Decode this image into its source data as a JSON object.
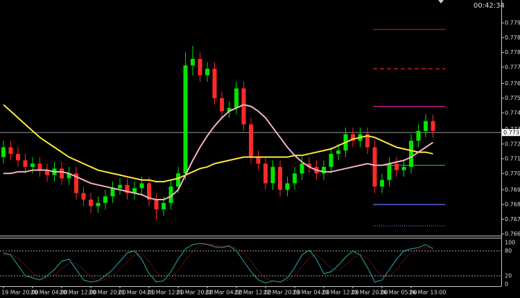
{
  "clock": "00:42:34",
  "chart_data": [
    {
      "type": "candlestick",
      "categories": [
        "19 Mar 20:00",
        null,
        null,
        null,
        "20 Mar 04:00",
        null,
        null,
        null,
        "20 Mar 12:00",
        null,
        null,
        null,
        "20 Mar 20:00",
        null,
        null,
        null,
        "21 Mar 04:00",
        null,
        null,
        null,
        "21 Mar 12:00",
        null,
        null,
        null,
        "21 Mar 20:00",
        null,
        null,
        null,
        "22 Mar 04:00",
        null,
        null,
        null,
        "22 Mar 12:00",
        null,
        null,
        null,
        "22 Mar 20:00",
        null,
        null,
        null,
        "23 Mar 04:00",
        null,
        null,
        null,
        "23 Mar 12:00",
        null,
        null,
        null,
        "23 Mar 20:00",
        null,
        null,
        null,
        "26 Mar 05:00",
        null,
        null,
        null,
        "26 Mar 13:00",
        null,
        null,
        null
      ],
      "open": [
        0.7716,
        0.7722,
        0.7718,
        0.7714,
        0.771,
        0.7712,
        0.7708,
        0.7705,
        0.7709,
        0.7703,
        0.7706,
        0.7694,
        0.769,
        0.7686,
        0.7688,
        0.7692,
        0.7697,
        0.7699,
        0.7694,
        0.7697,
        0.77,
        0.769,
        0.7684,
        0.7688,
        0.7698,
        0.7706,
        0.7772,
        0.7776,
        0.7766,
        0.777,
        0.7752,
        0.7744,
        0.7746,
        0.7758,
        0.7736,
        0.7716,
        0.7712,
        0.77,
        0.771,
        0.7696,
        0.77,
        0.7706,
        0.7712,
        0.771,
        0.7706,
        0.771,
        0.7718,
        0.772,
        0.773,
        0.7726,
        0.773,
        0.7722,
        0.7698,
        0.7702,
        0.7712,
        0.7708,
        0.771,
        0.7726,
        0.7732,
        0.7738
      ],
      "high": [
        0.7726,
        0.7726,
        0.7722,
        0.7718,
        0.7716,
        0.7716,
        0.7712,
        0.7713,
        0.7713,
        0.771,
        0.771,
        0.7698,
        0.7694,
        0.7692,
        0.7696,
        0.7701,
        0.7703,
        0.7703,
        0.7701,
        0.7704,
        0.7704,
        0.7694,
        0.7692,
        0.7702,
        0.771,
        0.778,
        0.7784,
        0.778,
        0.7774,
        0.7774,
        0.7756,
        0.775,
        0.7762,
        0.7762,
        0.774,
        0.772,
        0.7716,
        0.7714,
        0.7714,
        0.7704,
        0.771,
        0.7716,
        0.7716,
        0.7714,
        0.7714,
        0.7722,
        0.7724,
        0.7734,
        0.7734,
        0.7734,
        0.7734,
        0.7726,
        0.7706,
        0.7716,
        0.7716,
        0.7714,
        0.773,
        0.7736,
        0.7742,
        0.7742
      ],
      "low": [
        0.7712,
        0.7714,
        0.771,
        0.7706,
        0.7706,
        0.7704,
        0.7701,
        0.7701,
        0.7699,
        0.7699,
        0.769,
        0.7686,
        0.7682,
        0.7682,
        0.7684,
        0.7688,
        0.7693,
        0.769,
        0.769,
        0.7693,
        0.7686,
        0.7678,
        0.768,
        0.7684,
        0.7694,
        0.7702,
        0.7766,
        0.7762,
        0.7762,
        0.7748,
        0.774,
        0.774,
        0.7742,
        0.7732,
        0.7712,
        0.7708,
        0.7696,
        0.7696,
        0.7692,
        0.7692,
        0.7696,
        0.7702,
        0.7706,
        0.7702,
        0.7702,
        0.7706,
        0.7714,
        0.7716,
        0.7722,
        0.7722,
        0.7718,
        0.7694,
        0.7694,
        0.7698,
        0.7704,
        0.7704,
        0.7706,
        0.7722,
        0.7728,
        0.7728
      ],
      "close": [
        0.7722,
        0.7718,
        0.7714,
        0.771,
        0.7712,
        0.7708,
        0.7705,
        0.7709,
        0.7703,
        0.7706,
        0.7694,
        0.769,
        0.7686,
        0.7688,
        0.7692,
        0.7697,
        0.7699,
        0.7694,
        0.7697,
        0.77,
        0.769,
        0.7684,
        0.7688,
        0.7698,
        0.7706,
        0.7772,
        0.7776,
        0.7766,
        0.777,
        0.7752,
        0.7744,
        0.7746,
        0.7758,
        0.7736,
        0.7716,
        0.7712,
        0.77,
        0.771,
        0.7696,
        0.77,
        0.7706,
        0.7712,
        0.771,
        0.7706,
        0.771,
        0.7718,
        0.772,
        0.773,
        0.7726,
        0.773,
        0.7722,
        0.7698,
        0.7702,
        0.7712,
        0.7708,
        0.771,
        0.7726,
        0.7732,
        0.7738,
        0.7732
      ],
      "bull_color": "#00e600",
      "bear_color": "#ff2a2a",
      "lines": [
        {
          "color": "#ffeb3b",
          "values": [
            0.7748,
            0.7744,
            0.774,
            0.7736,
            0.7732,
            0.7728,
            0.7725,
            0.7722,
            0.7719,
            0.7716,
            0.7714,
            0.7712,
            0.771,
            0.7708,
            0.7707,
            0.7706,
            0.7705,
            0.7704,
            0.7703,
            0.7702,
            0.7702,
            0.7701,
            0.7701,
            0.7702,
            0.7703,
            0.7705,
            0.7707,
            0.7709,
            0.771,
            0.7712,
            0.7713,
            0.7714,
            0.7715,
            0.7716,
            0.7716,
            0.7716,
            0.7716,
            0.7716,
            0.7716,
            0.7716,
            0.7717,
            0.7717,
            0.7718,
            0.7719,
            0.772,
            0.7721,
            0.7723,
            0.7725,
            0.7727,
            0.7728,
            0.7729,
            0.7728,
            0.7726,
            0.7724,
            0.7722,
            0.7721,
            0.772,
            0.7719,
            0.7719,
            0.7718
          ]
        },
        {
          "color": "#f4b6c2",
          "values": [
            0.7706,
            0.7706,
            0.7707,
            0.7707,
            0.7708,
            0.7708,
            0.7708,
            0.7707,
            0.7707,
            0.7706,
            0.7704,
            0.7702,
            0.77,
            0.7699,
            0.7698,
            0.7697,
            0.7696,
            0.7695,
            0.7694,
            0.7693,
            0.7691,
            0.769,
            0.769,
            0.7692,
            0.7696,
            0.7705,
            0.7714,
            0.7722,
            0.7729,
            0.7735,
            0.774,
            0.7744,
            0.7746,
            0.7748,
            0.7747,
            0.7744,
            0.774,
            0.7734,
            0.7728,
            0.7722,
            0.7717,
            0.7713,
            0.771,
            0.7708,
            0.7707,
            0.7707,
            0.7708,
            0.7709,
            0.771,
            0.7711,
            0.7712,
            0.7711,
            0.7711,
            0.7712,
            0.7713,
            0.7714,
            0.7716,
            0.7719,
            0.7722,
            0.7725
          ]
        }
      ],
      "levels": [
        {
          "value": 0.7794,
          "color": "#b01818",
          "style": "solid"
        },
        {
          "value": 0.777,
          "color": "#d02020",
          "style": "dashed"
        },
        {
          "value": 0.7747,
          "color": "#e020a0",
          "style": "solid"
        },
        {
          "value": 0.7711,
          "color": "#20b020",
          "style": "solid"
        },
        {
          "value": 0.7687,
          "color": "#7070ff",
          "style": "solid"
        },
        {
          "value": 0.7674,
          "color": "#4a70ff",
          "style": "dotted"
        }
      ],
      "current_price": 0.7731,
      "ylim": [
        0.7668,
        0.7812
      ],
      "yticks": [
        0.7798,
        0.7789,
        {
          "value": 0.778,
          "label": "0.7780"
        },
        0.7771,
        0.7761,
        0.7752,
        0.7743,
        0.7733,
        0.7724,
        0.7715,
        0.7706,
        0.7696,
        0.7687,
        0.7678,
        0.7669
      ]
    },
    {
      "type": "line",
      "series": [
        {
          "color": "#2ab0b0",
          "style": "solid",
          "values": [
            75,
            70,
            45,
            20,
            15,
            10,
            20,
            35,
            55,
            60,
            35,
            10,
            5,
            8,
            20,
            35,
            55,
            75,
            80,
            60,
            25,
            5,
            8,
            30,
            60,
            85,
            95,
            98,
            96,
            90,
            88,
            92,
            80,
            55,
            30,
            10,
            3,
            8,
            5,
            15,
            40,
            70,
            82,
            60,
            25,
            30,
            45,
            65,
            80,
            70,
            40,
            5,
            10,
            35,
            60,
            80,
            85,
            88,
            95,
            85
          ]
        },
        {
          "color": "#e03030",
          "style": "dotted",
          "values": [
            70,
            72,
            63,
            45,
            27,
            15,
            15,
            22,
            37,
            50,
            50,
            35,
            17,
            8,
            11,
            21,
            37,
            55,
            70,
            72,
            55,
            30,
            13,
            14,
            33,
            58,
            80,
            93,
            96,
            95,
            91,
            90,
            87,
            76,
            55,
            32,
            14,
            7,
            5,
            9,
            20,
            42,
            64,
            71,
            56,
            38,
            33,
            47,
            63,
            72,
            63,
            38,
            18,
            17,
            35,
            58,
            75,
            84,
            89,
            89
          ]
        }
      ],
      "ylim": [
        0,
        100
      ],
      "yticks": [
        0,
        20,
        80,
        100
      ]
    }
  ]
}
